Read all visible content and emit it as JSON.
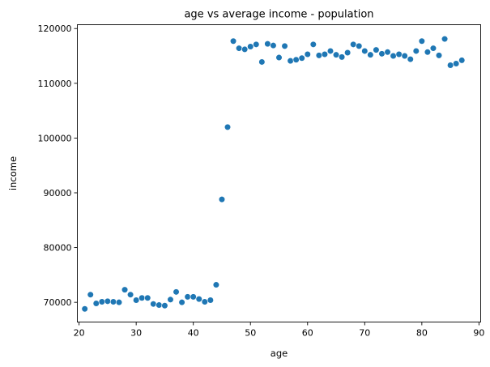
{
  "chart_data": {
    "type": "scatter",
    "title": "age vs average income - population",
    "xlabel": "age",
    "ylabel": "income",
    "xlim": [
      19.7,
      90.3
    ],
    "ylim": [
      66400,
      120700
    ],
    "xticks": [
      20,
      30,
      40,
      50,
      60,
      70,
      80,
      90
    ],
    "yticks": [
      70000,
      80000,
      90000,
      100000,
      110000,
      120000
    ],
    "grid": false,
    "marker_color": "#1f77b4",
    "series": [
      {
        "x": [
          21,
          22,
          23,
          24,
          25,
          26,
          27,
          28,
          29,
          30,
          31,
          32,
          33,
          34,
          35,
          36,
          37,
          38,
          39,
          40,
          41,
          42,
          43,
          44,
          45,
          46,
          47,
          48,
          49,
          50,
          51,
          52,
          53,
          54,
          55,
          56,
          57,
          58,
          59,
          60,
          61,
          62,
          63,
          64,
          65,
          66,
          67,
          68,
          69,
          70,
          71,
          72,
          73,
          74,
          75,
          76,
          77,
          78,
          79,
          80,
          81,
          82,
          83,
          84,
          85,
          86,
          87
        ],
        "y": [
          68800,
          71400,
          69800,
          70100,
          70200,
          70100,
          70000,
          72300,
          71400,
          70400,
          70800,
          70800,
          69700,
          69500,
          69400,
          70500,
          71900,
          70000,
          71000,
          71000,
          70600,
          70100,
          70400,
          73200,
          88800,
          102000,
          117700,
          116400,
          116200,
          116700,
          117100,
          113900,
          117200,
          116900,
          114700,
          116800,
          114100,
          114300,
          114600,
          115300,
          117100,
          115100,
          115300,
          115900,
          115200,
          114800,
          115600,
          117100,
          116800,
          115900,
          115200,
          116100,
          115400,
          115700,
          115000,
          115300,
          115000,
          114400,
          115900,
          117700,
          115700,
          116400,
          115100,
          118100,
          113300,
          113600,
          114200
        ]
      }
    ]
  }
}
